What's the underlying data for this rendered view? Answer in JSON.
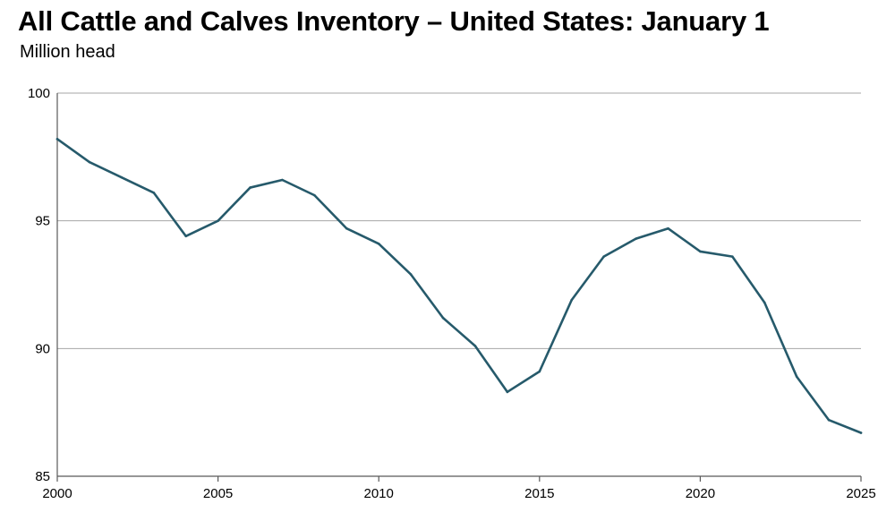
{
  "chart_data": {
    "type": "line",
    "title": "All Cattle and Calves Inventory – United States: January 1",
    "subtitle": "Million head",
    "xlabel": "",
    "ylabel": "",
    "x": [
      2000,
      2001,
      2002,
      2003,
      2004,
      2005,
      2006,
      2007,
      2008,
      2009,
      2010,
      2011,
      2012,
      2013,
      2014,
      2015,
      2016,
      2017,
      2018,
      2019,
      2020,
      2021,
      2022,
      2023,
      2024,
      2025
    ],
    "series": [
      {
        "values": [
          98.2,
          97.3,
          96.7,
          96.1,
          94.4,
          95.0,
          96.3,
          96.6,
          96.0,
          94.7,
          94.1,
          92.9,
          91.2,
          90.1,
          88.3,
          89.1,
          91.9,
          93.6,
          94.3,
          94.7,
          93.8,
          93.6,
          91.8,
          88.9,
          87.2,
          86.7
        ],
        "color": "#265a6b"
      }
    ],
    "xlim": [
      2000,
      2025
    ],
    "ylim": [
      85,
      100
    ],
    "xticks": [
      "2000",
      "2005",
      "2010",
      "2015",
      "2020",
      "2025"
    ],
    "yticks": [
      "85",
      "90",
      "95",
      "100"
    ],
    "grid": "horizontal",
    "grid_color": "#a6a6a6",
    "axis_color": "#595959",
    "legend": "none"
  }
}
